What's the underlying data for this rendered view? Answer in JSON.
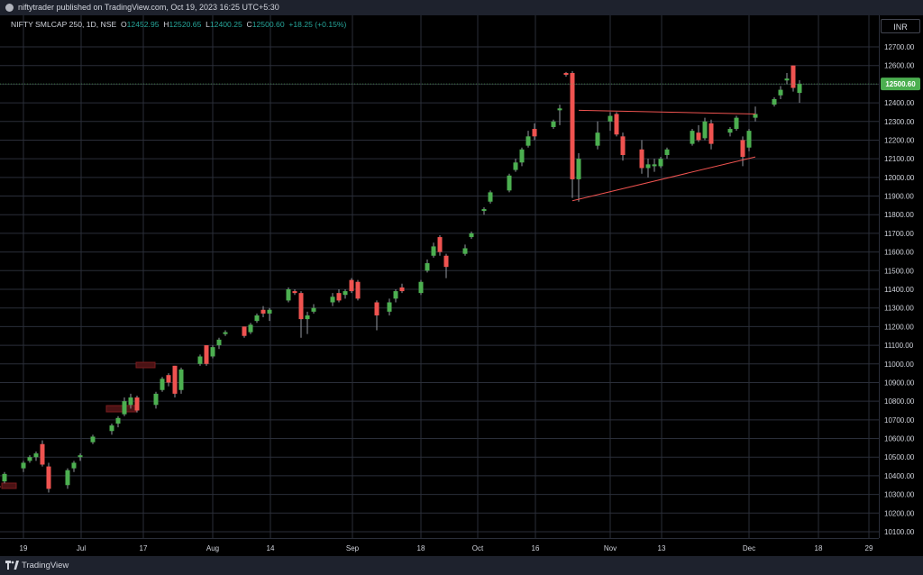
{
  "header": {
    "published_text": "niftytrader published on TradingView.com, Oct 19, 2023 16:25 UTC+5:30"
  },
  "legend": {
    "symbol": "NIFTY SMLCAP 250, 1D, NSE",
    "open_label": "O",
    "open": "12452.95",
    "high_label": "H",
    "high": "12520.65",
    "low_label": "L",
    "low": "12400.25",
    "close_label": "C",
    "close": "12500.60",
    "change": "+18.25 (+0.15%)"
  },
  "currency": "INR",
  "last_price_label": "12500.60",
  "footer": {
    "brand": "TradingView"
  },
  "colors": {
    "up": "#26a69a",
    "up_body": "#4caf50",
    "down": "#ef5350",
    "grid": "#2a2e39",
    "price_tag": "#4caf50",
    "trendline": "#ef5350"
  },
  "chart_data": {
    "type": "candlestick",
    "ylim": [
      10100,
      12700
    ],
    "y_ticks": [
      "10100.00",
      "10200.00",
      "10300.00",
      "10400.00",
      "10500.00",
      "10600.00",
      "10700.00",
      "10800.00",
      "10900.00",
      "11000.00",
      "11100.00",
      "11200.00",
      "11300.00",
      "11400.00",
      "11500.00",
      "11600.00",
      "11700.00",
      "11800.00",
      "11900.00",
      "12000.00",
      "12100.00",
      "12200.00",
      "12300.00",
      "12400.00",
      "12500.00",
      "12600.00",
      "12700.00"
    ],
    "x_ticks": [
      "19",
      "Jul",
      "17",
      "Aug",
      "14",
      "Sep",
      "18",
      "Oct",
      "16",
      "Nov",
      "13",
      "Dec",
      "18",
      "29"
    ],
    "candles": [
      {
        "date": "2023-06-15",
        "o": 10345,
        "h": 10350,
        "l": 10330,
        "c": 10340
      },
      {
        "date": "2023-06-16",
        "o": 10370,
        "h": 10420,
        "l": 10360,
        "c": 10410
      },
      {
        "date": "2023-06-19",
        "o": 10440,
        "h": 10480,
        "l": 10420,
        "c": 10470
      },
      {
        "date": "2023-06-20",
        "o": 10480,
        "h": 10510,
        "l": 10470,
        "c": 10500
      },
      {
        "date": "2023-06-21",
        "o": 10500,
        "h": 10530,
        "l": 10480,
        "c": 10520
      },
      {
        "date": "2023-06-22",
        "o": 10570,
        "h": 10590,
        "l": 10450,
        "c": 10460
      },
      {
        "date": "2023-06-23",
        "o": 10450,
        "h": 10470,
        "l": 10310,
        "c": 10330
      },
      {
        "date": "2023-06-26",
        "o": 10350,
        "h": 10440,
        "l": 10330,
        "c": 10430
      },
      {
        "date": "2023-06-27",
        "o": 10440,
        "h": 10480,
        "l": 10420,
        "c": 10470
      },
      {
        "date": "2023-06-28",
        "o": 10500,
        "h": 10520,
        "l": 10480,
        "c": 10510
      },
      {
        "date": "2023-06-30",
        "o": 10580,
        "h": 10620,
        "l": 10570,
        "c": 10610
      },
      {
        "date": "2023-07-03",
        "o": 10640,
        "h": 10680,
        "l": 10620,
        "c": 10670
      },
      {
        "date": "2023-07-04",
        "o": 10680,
        "h": 10720,
        "l": 10660,
        "c": 10710
      },
      {
        "date": "2023-07-05",
        "o": 10730,
        "h": 10820,
        "l": 10720,
        "c": 10800
      },
      {
        "date": "2023-07-06",
        "o": 10780,
        "h": 10840,
        "l": 10760,
        "c": 10820
      },
      {
        "date": "2023-07-07",
        "o": 10820,
        "h": 10830,
        "l": 10740,
        "c": 10750
      },
      {
        "date": "2023-07-10",
        "o": 10780,
        "h": 10850,
        "l": 10760,
        "c": 10840
      },
      {
        "date": "2023-07-11",
        "o": 10860,
        "h": 10930,
        "l": 10850,
        "c": 10920
      },
      {
        "date": "2023-07-12",
        "o": 10940,
        "h": 10950,
        "l": 10880,
        "c": 10900
      },
      {
        "date": "2023-07-13",
        "o": 10990,
        "h": 10990,
        "l": 10820,
        "c": 10840
      },
      {
        "date": "2023-07-14",
        "o": 10860,
        "h": 10980,
        "l": 10840,
        "c": 10970
      },
      {
        "date": "2023-07-17",
        "o": 11000,
        "h": 11050,
        "l": 10990,
        "c": 11040
      },
      {
        "date": "2023-07-18",
        "o": 11100,
        "h": 11100,
        "l": 10990,
        "c": 11000
      },
      {
        "date": "2023-07-19",
        "o": 11040,
        "h": 11100,
        "l": 11030,
        "c": 11090
      },
      {
        "date": "2023-07-20",
        "o": 11100,
        "h": 11140,
        "l": 11080,
        "c": 11130
      },
      {
        "date": "2023-07-21",
        "o": 11160,
        "h": 11180,
        "l": 11150,
        "c": 11170
      },
      {
        "date": "2023-07-24",
        "o": 11200,
        "h": 11200,
        "l": 11140,
        "c": 11150
      },
      {
        "date": "2023-07-25",
        "o": 11170,
        "h": 11220,
        "l": 11160,
        "c": 11210
      },
      {
        "date": "2023-07-26",
        "o": 11230,
        "h": 11270,
        "l": 11220,
        "c": 11260
      },
      {
        "date": "2023-07-27",
        "o": 11290,
        "h": 11310,
        "l": 11250,
        "c": 11270
      },
      {
        "date": "2023-07-28",
        "o": 11270,
        "h": 11300,
        "l": 11230,
        "c": 11290
      },
      {
        "date": "2023-07-31",
        "o": 11340,
        "h": 11410,
        "l": 11330,
        "c": 11400
      },
      {
        "date": "2023-08-01",
        "o": 11390,
        "h": 11400,
        "l": 11370,
        "c": 11380
      },
      {
        "date": "2023-08-02",
        "o": 11380,
        "h": 11390,
        "l": 11140,
        "c": 11240
      },
      {
        "date": "2023-08-03",
        "o": 11240,
        "h": 11280,
        "l": 11160,
        "c": 11260
      },
      {
        "date": "2023-08-04",
        "o": 11280,
        "h": 11320,
        "l": 11270,
        "c": 11300
      },
      {
        "date": "2023-08-07",
        "o": 11330,
        "h": 11380,
        "l": 11310,
        "c": 11360
      },
      {
        "date": "2023-08-08",
        "o": 11380,
        "h": 11400,
        "l": 11330,
        "c": 11340
      },
      {
        "date": "2023-08-09",
        "o": 11370,
        "h": 11400,
        "l": 11350,
        "c": 11390
      },
      {
        "date": "2023-08-10",
        "o": 11450,
        "h": 11460,
        "l": 11380,
        "c": 11390
      },
      {
        "date": "2023-08-11",
        "o": 11440,
        "h": 11450,
        "l": 11340,
        "c": 11350
      },
      {
        "date": "2023-08-14",
        "o": 11330,
        "h": 11340,
        "l": 11180,
        "c": 11260
      },
      {
        "date": "2023-08-16",
        "o": 11280,
        "h": 11350,
        "l": 11260,
        "c": 11330
      },
      {
        "date": "2023-08-17",
        "o": 11350,
        "h": 11400,
        "l": 11330,
        "c": 11390
      },
      {
        "date": "2023-08-18",
        "o": 11410,
        "h": 11430,
        "l": 11380,
        "c": 11390
      },
      {
        "date": "2023-08-21",
        "o": 11380,
        "h": 11450,
        "l": 11370,
        "c": 11440
      },
      {
        "date": "2023-08-22",
        "o": 11500,
        "h": 11560,
        "l": 11490,
        "c": 11540
      },
      {
        "date": "2023-08-23",
        "o": 11580,
        "h": 11650,
        "l": 11570,
        "c": 11630
      },
      {
        "date": "2023-08-24",
        "o": 11680,
        "h": 11690,
        "l": 11580,
        "c": 11600
      },
      {
        "date": "2023-08-25",
        "o": 11580,
        "h": 11590,
        "l": 11460,
        "c": 11520
      },
      {
        "date": "2023-08-28",
        "o": 11590,
        "h": 11640,
        "l": 11580,
        "c": 11620
      },
      {
        "date": "2023-08-29",
        "o": 11680,
        "h": 11710,
        "l": 11670,
        "c": 11700
      },
      {
        "date": "2023-08-31",
        "o": 11820,
        "h": 11840,
        "l": 11800,
        "c": 11830
      },
      {
        "date": "2023-09-01",
        "o": 11870,
        "h": 11930,
        "l": 11860,
        "c": 11920
      },
      {
        "date": "2023-09-04",
        "o": 11930,
        "h": 12020,
        "l": 11920,
        "c": 12010
      },
      {
        "date": "2023-09-05",
        "o": 12040,
        "h": 12100,
        "l": 12030,
        "c": 12080
      },
      {
        "date": "2023-09-06",
        "o": 12080,
        "h": 12160,
        "l": 12060,
        "c": 12150
      },
      {
        "date": "2023-09-07",
        "o": 12170,
        "h": 12250,
        "l": 12160,
        "c": 12220
      },
      {
        "date": "2023-09-08",
        "o": 12260,
        "h": 12290,
        "l": 12200,
        "c": 12220
      },
      {
        "date": "2023-09-11",
        "o": 12270,
        "h": 12310,
        "l": 12260,
        "c": 12300
      },
      {
        "date": "2023-09-12",
        "o": 12360,
        "h": 12390,
        "l": 12280,
        "c": 12370
      },
      {
        "date": "2023-09-13",
        "o": 12560,
        "h": 12565,
        "l": 12540,
        "c": 12550
      },
      {
        "date": "2023-09-14",
        "o": 12560,
        "h": 12570,
        "l": 11890,
        "c": 11990
      },
      {
        "date": "2023-09-15",
        "o": 11990,
        "h": 12130,
        "l": 11870,
        "c": 12100
      },
      {
        "date": "2023-09-18",
        "o": 12170,
        "h": 12300,
        "l": 12150,
        "c": 12240
      },
      {
        "date": "2023-09-20",
        "o": 12300,
        "h": 12350,
        "l": 12250,
        "c": 12330
      },
      {
        "date": "2023-09-21",
        "o": 12340,
        "h": 12350,
        "l": 12220,
        "c": 12230
      },
      {
        "date": "2023-09-22",
        "o": 12220,
        "h": 12240,
        "l": 12090,
        "c": 12120
      },
      {
        "date": "2023-09-25",
        "o": 12150,
        "h": 12200,
        "l": 12020,
        "c": 12050
      },
      {
        "date": "2023-09-26",
        "o": 12050,
        "h": 12100,
        "l": 12000,
        "c": 12070
      },
      {
        "date": "2023-09-27",
        "o": 12060,
        "h": 12100,
        "l": 12030,
        "c": 12070
      },
      {
        "date": "2023-09-28",
        "o": 12060,
        "h": 12110,
        "l": 12050,
        "c": 12100
      },
      {
        "date": "2023-09-29",
        "o": 12120,
        "h": 12160,
        "l": 12100,
        "c": 12150
      },
      {
        "date": "2023-10-03",
        "o": 12180,
        "h": 12260,
        "l": 12170,
        "c": 12250
      },
      {
        "date": "2023-10-04",
        "o": 12240,
        "h": 12280,
        "l": 12190,
        "c": 12200
      },
      {
        "date": "2023-10-05",
        "o": 12210,
        "h": 12320,
        "l": 12200,
        "c": 12300
      },
      {
        "date": "2023-10-06",
        "o": 12290,
        "h": 12310,
        "l": 12150,
        "c": 12180
      },
      {
        "date": "2023-10-09",
        "o": 12240,
        "h": 12270,
        "l": 12220,
        "c": 12260
      },
      {
        "date": "2023-10-10",
        "o": 12260,
        "h": 12330,
        "l": 12250,
        "c": 12320
      },
      {
        "date": "2023-10-11",
        "o": 12200,
        "h": 12220,
        "l": 12060,
        "c": 12110
      },
      {
        "date": "2023-10-12",
        "o": 12160,
        "h": 12260,
        "l": 12140,
        "c": 12250
      },
      {
        "date": "2023-10-13",
        "o": 12320,
        "h": 12380,
        "l": 12300,
        "c": 12340
      },
      {
        "date": "2023-10-16",
        "o": 12390,
        "h": 12430,
        "l": 12380,
        "c": 12420
      },
      {
        "date": "2023-10-17",
        "o": 12440,
        "h": 12490,
        "l": 12420,
        "c": 12470
      },
      {
        "date": "2023-10-18",
        "o": 12520,
        "h": 12560,
        "l": 12500,
        "c": 12530
      },
      {
        "date": "2023-10-19",
        "o": 12600,
        "h": 12600,
        "l": 12460,
        "c": 12480
      },
      {
        "date": "2023-10-20",
        "o": 12453,
        "h": 12521,
        "l": 12400,
        "c": 12501
      }
    ],
    "trendlines": [
      {
        "from": {
          "date": "2023-09-14",
          "value": 11875
        },
        "to": {
          "date": "2023-10-13",
          "value": 12110
        }
      },
      {
        "from": {
          "date": "2023-09-15",
          "value": 12360
        },
        "to": {
          "date": "2023-10-13",
          "value": 12340
        }
      }
    ]
  }
}
